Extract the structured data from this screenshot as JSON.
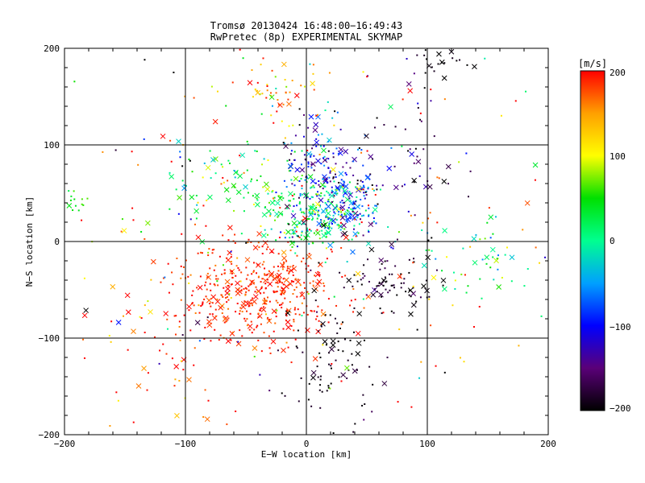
{
  "chart_data": {
    "type": "scatter",
    "title": "Tromsø 20130424 16:48:00−16:49:43",
    "subtitle": "RwPretec (8p) EXPERIMENTAL SKYMAP",
    "xlabel": "E−W location [km]",
    "ylabel": "N−S location [km]",
    "xlim": [
      -200,
      200
    ],
    "ylim": [
      -200,
      200
    ],
    "xticks": [
      "−200",
      "−100",
      "0",
      "100",
      "200"
    ],
    "yticks": [
      "−200",
      "−100",
      "0",
      "100",
      "200"
    ],
    "grid": true,
    "colorbar": {
      "label": "[m/s]",
      "range": [
        -200,
        200
      ],
      "ticks": [
        "−200",
        "−100",
        "0",
        "100",
        "200"
      ],
      "colors": [
        "#000000",
        "#5a0078",
        "#0000ff",
        "#00a0ff",
        "#00ff90",
        "#00e000",
        "#ffff00",
        "#ffa000",
        "#ff0000"
      ]
    },
    "point_markers": [
      "dot",
      "cross"
    ],
    "clusters": [
      {
        "name": "north-center-blue",
        "x": 15,
        "y": 70,
        "spread": [
          18,
          30
        ],
        "count": 160,
        "value": -110,
        "value_spread": 50
      },
      {
        "name": "center-green",
        "x": 5,
        "y": 30,
        "spread": [
          22,
          18
        ],
        "count": 220,
        "value": 15,
        "value_spread": 45
      },
      {
        "name": "center-east-blue",
        "x": 35,
        "y": 35,
        "spread": [
          15,
          15
        ],
        "count": 110,
        "value": -90,
        "value_spread": 50
      },
      {
        "name": "southwest-red",
        "x": -40,
        "y": -50,
        "spread": [
          35,
          28
        ],
        "count": 420,
        "value": 190,
        "value_spread": 15
      },
      {
        "name": "south-center-black",
        "x": 20,
        "y": -120,
        "spread": [
          20,
          40
        ],
        "count": 90,
        "value": -190,
        "value_spread": 15
      },
      {
        "name": "southeast-black",
        "x": 70,
        "y": -45,
        "spread": [
          20,
          18
        ],
        "count": 80,
        "value": -185,
        "value_spread": 20
      },
      {
        "name": "west-cyan",
        "x": -70,
        "y": 70,
        "spread": [
          25,
          25
        ],
        "count": 70,
        "value": 30,
        "value_spread": 45
      },
      {
        "name": "northwest-yellow",
        "x": -25,
        "y": 160,
        "spread": [
          15,
          20
        ],
        "count": 50,
        "value": 140,
        "value_spread": 60
      },
      {
        "name": "west-green",
        "x": -190,
        "y": 40,
        "spread": [
          8,
          5
        ],
        "count": 14,
        "value": 40,
        "value_spread": 20
      },
      {
        "name": "east-cyan",
        "x": 140,
        "y": -20,
        "spread": [
          30,
          25
        ],
        "count": 55,
        "value": 30,
        "value_spread": 60
      },
      {
        "name": "northeast-black",
        "x": 80,
        "y": 90,
        "spread": [
          25,
          40
        ],
        "count": 60,
        "value": -160,
        "value_spread": 45
      },
      {
        "name": "top-right-black",
        "x": 115,
        "y": 185,
        "spread": [
          10,
          10
        ],
        "count": 20,
        "value": -195,
        "value_spread": 5
      },
      {
        "name": "southwest-red-scatter",
        "x": -110,
        "y": -90,
        "spread": [
          35,
          40
        ],
        "count": 60,
        "value": 175,
        "value_spread": 40
      },
      {
        "name": "background-red",
        "x": 0,
        "y": 0,
        "spread": [
          110,
          110
        ],
        "count": 130,
        "value": 170,
        "value_spread": 60
      },
      {
        "name": "background-mixed",
        "x": 0,
        "y": 0,
        "spread": [
          120,
          120
        ],
        "count": 120,
        "value": 0,
        "value_spread": 180
      }
    ]
  }
}
